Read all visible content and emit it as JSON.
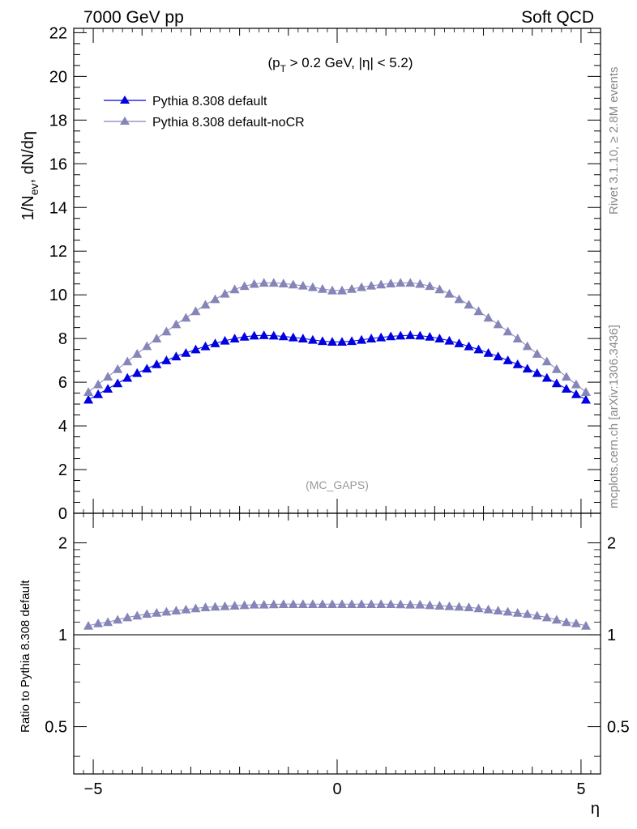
{
  "header": {
    "left_title": "7000 GeV pp",
    "right_title": "Soft QCD"
  },
  "side_text": {
    "rivet": "Rivet 3.1.10, ≥ 2.8M events",
    "mcplots": "mcplots.cern.ch [arXiv:1306.3436]"
  },
  "main_panel": {
    "ylabel": "1/N_ev, dN/dη",
    "cut_label": "(p_T > 0.2 GeV, |η| < 5.2)",
    "watermark": "(MC_GAPS)"
  },
  "ratio_panel": {
    "ylabel": "Ratio to Pythia 8.308 default"
  },
  "colors": {
    "default": "#0000e0",
    "noCR": "#8585b8",
    "ref_line": "#000000"
  },
  "chart_data": [
    {
      "type": "scatter",
      "panel": "main",
      "xlabel": "η",
      "ylabel": "1/N_ev, dN/dη",
      "xlim": [
        -5.4,
        5.4
      ],
      "ylim": [
        0,
        22.2
      ],
      "yticks": [
        0,
        2,
        4,
        6,
        8,
        10,
        12,
        14,
        16,
        18,
        20,
        22
      ],
      "ytick_labels": [
        "0",
        "2",
        "4",
        "6",
        "8",
        "10",
        "12",
        "14",
        "16",
        "18",
        "20",
        "22"
      ],
      "legend_position": "top-left",
      "x": [
        -5.1,
        -4.9,
        -4.7,
        -4.5,
        -4.3,
        -4.1,
        -3.9,
        -3.7,
        -3.5,
        -3.3,
        -3.1,
        -2.9,
        -2.7,
        -2.5,
        -2.3,
        -2.1,
        -1.9,
        -1.7,
        -1.5,
        -1.3,
        -1.1,
        -0.9,
        -0.7,
        -0.5,
        -0.3,
        -0.1,
        0.1,
        0.3,
        0.5,
        0.7,
        0.9,
        1.1,
        1.3,
        1.5,
        1.7,
        1.9,
        2.1,
        2.3,
        2.5,
        2.7,
        2.9,
        3.1,
        3.3,
        3.5,
        3.7,
        3.9,
        4.1,
        4.3,
        4.5,
        4.7,
        4.9,
        5.1
      ],
      "series": [
        {
          "name": "Pythia 8.308 default",
          "values": [
            5.2,
            5.45,
            5.7,
            5.95,
            6.2,
            6.42,
            6.62,
            6.82,
            7.0,
            7.18,
            7.34,
            7.5,
            7.64,
            7.78,
            7.9,
            8.0,
            8.08,
            8.13,
            8.15,
            8.13,
            8.1,
            8.05,
            8.0,
            7.94,
            7.88,
            7.85,
            7.85,
            7.88,
            7.94,
            8.0,
            8.05,
            8.1,
            8.13,
            8.15,
            8.13,
            8.08,
            8.0,
            7.9,
            7.78,
            7.64,
            7.5,
            7.34,
            7.18,
            7.0,
            6.82,
            6.62,
            6.42,
            6.2,
            5.95,
            5.7,
            5.45,
            5.2
          ]
        },
        {
          "name": "Pythia 8.308 default-noCR",
          "values": [
            5.55,
            5.9,
            6.25,
            6.6,
            6.95,
            7.3,
            7.65,
            8.0,
            8.32,
            8.65,
            8.95,
            9.25,
            9.55,
            9.8,
            10.05,
            10.25,
            10.4,
            10.5,
            10.55,
            10.55,
            10.52,
            10.47,
            10.42,
            10.35,
            10.27,
            10.2,
            10.2,
            10.27,
            10.35,
            10.42,
            10.47,
            10.52,
            10.55,
            10.55,
            10.5,
            10.4,
            10.25,
            10.05,
            9.8,
            9.55,
            9.25,
            8.95,
            8.65,
            8.32,
            8.0,
            7.65,
            7.3,
            6.95,
            6.6,
            6.25,
            5.9,
            5.55
          ]
        }
      ]
    },
    {
      "type": "scatter",
      "panel": "ratio",
      "xlabel": "η",
      "ylabel": "Ratio to Pythia 8.308 default",
      "xlim": [
        -5.4,
        5.4
      ],
      "ylim": [
        0.35,
        2.5
      ],
      "yscale": "log",
      "yticks": [
        0.5,
        1,
        2
      ],
      "ytick_labels": [
        "0.5",
        "1",
        "2"
      ],
      "xticks": [
        -5,
        0,
        5
      ],
      "xtick_labels": [
        "−5",
        "0",
        "5"
      ],
      "reference_line": 1,
      "x": [
        -5.1,
        -4.9,
        -4.7,
        -4.5,
        -4.3,
        -4.1,
        -3.9,
        -3.7,
        -3.5,
        -3.3,
        -3.1,
        -2.9,
        -2.7,
        -2.5,
        -2.3,
        -2.1,
        -1.9,
        -1.7,
        -1.5,
        -1.3,
        -1.1,
        -0.9,
        -0.7,
        -0.5,
        -0.3,
        -0.1,
        0.1,
        0.3,
        0.5,
        0.7,
        0.9,
        1.1,
        1.3,
        1.5,
        1.7,
        1.9,
        2.1,
        2.3,
        2.5,
        2.7,
        2.9,
        3.1,
        3.3,
        3.5,
        3.7,
        3.9,
        4.1,
        4.3,
        4.5,
        4.7,
        4.9,
        5.1
      ],
      "series": [
        {
          "name": "Pythia 8.308 default-noCR",
          "values": [
            1.07,
            1.09,
            1.1,
            1.12,
            1.14,
            1.155,
            1.17,
            1.18,
            1.19,
            1.2,
            1.21,
            1.22,
            1.23,
            1.235,
            1.24,
            1.245,
            1.25,
            1.255,
            1.255,
            1.258,
            1.26,
            1.26,
            1.26,
            1.26,
            1.26,
            1.26,
            1.26,
            1.26,
            1.26,
            1.26,
            1.26,
            1.26,
            1.258,
            1.255,
            1.255,
            1.25,
            1.245,
            1.24,
            1.235,
            1.23,
            1.22,
            1.21,
            1.2,
            1.19,
            1.18,
            1.17,
            1.155,
            1.14,
            1.12,
            1.1,
            1.09,
            1.07
          ]
        }
      ]
    }
  ]
}
